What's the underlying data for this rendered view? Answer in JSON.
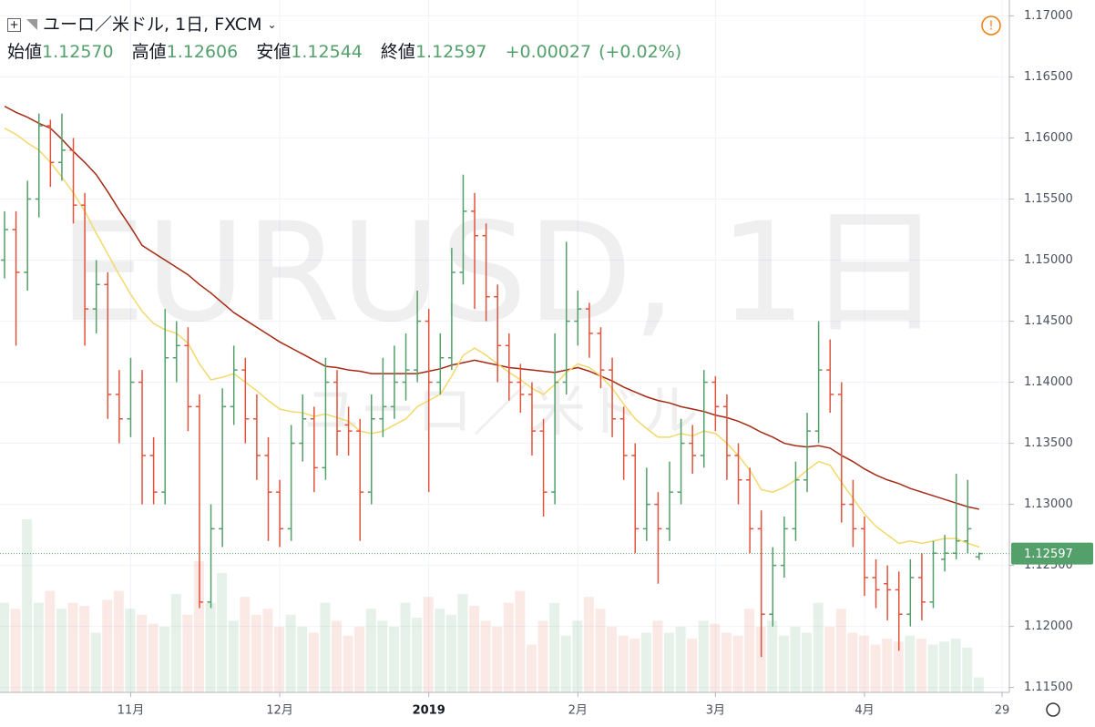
{
  "header": {
    "symbol": "ユーロ／米ドル, 1日, FXCM",
    "open_label": "始値",
    "open": "1.12570",
    "high_label": "高値",
    "high": "1.12606",
    "low_label": "安値",
    "low": "1.12544",
    "close_label": "終値",
    "close": "1.12597",
    "change": "+0.00027",
    "change_pct": "(+0.02%)"
  },
  "chart_data": {
    "type": "ohlc",
    "watermark": "EURUSD, 1日",
    "watermark_sub": "ユーロ／米ドル",
    "up_color": "#53a06b",
    "down_color": "#e0533d",
    "grid": true,
    "categories": [
      null,
      null,
      null,
      null,
      null,
      null,
      null,
      null,
      null,
      null,
      null,
      "11月",
      null,
      null,
      null,
      null,
      null,
      null,
      null,
      null,
      null,
      null,
      null,
      null,
      "12月",
      null,
      null,
      null,
      null,
      null,
      null,
      null,
      null,
      null,
      null,
      null,
      null,
      "2019",
      null,
      null,
      null,
      null,
      null,
      null,
      null,
      null,
      null,
      null,
      null,
      null,
      "2月",
      null,
      null,
      null,
      null,
      null,
      null,
      null,
      null,
      null,
      null,
      null,
      "3月",
      null,
      null,
      null,
      null,
      null,
      null,
      null,
      null,
      null,
      null,
      null,
      null,
      "4月",
      null,
      null,
      null,
      null,
      null,
      null,
      null,
      null,
      null,
      null,
      null,
      "29"
    ],
    "open": [
      1.15,
      1.1525,
      1.149,
      1.155,
      1.161,
      1.158,
      1.159,
      1.1545,
      1.146,
      1.148,
      1.139,
      1.137,
      1.14,
      1.134,
      1.131,
      1.142,
      1.143,
      1.138,
      1.122,
      1.128,
      1.138,
      1.141,
      1.137,
      1.134,
      1.131,
      1.128,
      1.135,
      1.137,
      1.133,
      1.14,
      1.1365,
      1.136,
      1.131,
      1.137,
      1.138,
      1.14,
      1.141,
      1.145,
      1.14,
      1.142,
      1.149,
      1.154,
      1.152,
      1.147,
      1.143,
      1.14,
      1.139,
      1.136,
      1.131,
      1.14,
      1.145,
      1.146,
      1.144,
      1.141,
      1.137,
      1.134,
      1.128,
      1.13,
      1.128,
      1.131,
      1.135,
      1.134,
      1.14,
      1.138,
      1.134,
      1.132,
      1.128,
      1.121,
      1.125,
      1.128,
      1.132,
      1.136,
      1.141,
      1.139,
      1.13,
      1.128,
      1.124,
      1.1235,
      1.123,
      1.121,
      1.124,
      1.122,
      1.1255,
      1.126,
      1.127,
      1.1257,
      null,
      null
    ],
    "high": [
      1.154,
      1.154,
      1.1565,
      1.162,
      1.1615,
      1.162,
      1.16,
      1.1555,
      1.15,
      1.149,
      1.141,
      1.142,
      1.141,
      1.1355,
      1.146,
      1.145,
      1.1445,
      1.139,
      1.13,
      1.1395,
      1.143,
      1.142,
      1.139,
      1.1355,
      1.132,
      1.1365,
      1.139,
      1.138,
      1.142,
      1.141,
      1.138,
      1.137,
      1.139,
      1.142,
      1.143,
      1.144,
      1.1475,
      1.146,
      1.144,
      1.151,
      1.157,
      1.1555,
      1.153,
      1.148,
      1.144,
      1.1415,
      1.14,
      1.137,
      1.144,
      1.1515,
      1.1475,
      1.1465,
      1.1445,
      1.142,
      1.138,
      1.135,
      1.133,
      1.131,
      1.1335,
      1.137,
      1.1365,
      1.141,
      1.1405,
      1.139,
      1.135,
      1.133,
      1.1295,
      1.1265,
      1.129,
      1.1335,
      1.1375,
      1.145,
      1.1435,
      1.14,
      1.132,
      1.129,
      1.1255,
      1.125,
      1.1245,
      1.1255,
      1.126,
      1.127,
      1.1275,
      1.1325,
      1.132,
      1.12606,
      null,
      null
    ],
    "low": [
      1.1485,
      1.143,
      1.1475,
      1.1535,
      1.156,
      1.1565,
      1.153,
      1.143,
      1.144,
      1.137,
      1.135,
      1.1355,
      1.13,
      1.13,
      1.13,
      1.14,
      1.136,
      1.1215,
      1.1215,
      1.1265,
      1.1365,
      1.135,
      1.132,
      1.127,
      1.1265,
      1.127,
      1.1335,
      1.131,
      1.132,
      1.134,
      1.134,
      1.127,
      1.13,
      1.1355,
      1.137,
      1.1385,
      1.14,
      1.131,
      1.139,
      1.141,
      1.148,
      1.146,
      1.145,
      1.14,
      1.1385,
      1.1375,
      1.134,
      1.129,
      1.13,
      1.139,
      1.143,
      1.142,
      1.1395,
      1.1355,
      1.132,
      1.126,
      1.127,
      1.1235,
      1.127,
      1.13,
      1.1325,
      1.133,
      1.136,
      1.132,
      1.13,
      1.126,
      1.1175,
      1.12,
      1.124,
      1.127,
      1.131,
      1.135,
      1.1375,
      1.1285,
      1.1265,
      1.1225,
      1.1215,
      1.1205,
      1.118,
      1.12,
      1.1205,
      1.1215,
      1.1245,
      1.1255,
      1.126,
      1.12544,
      null,
      null
    ],
    "close": [
      1.1525,
      1.149,
      1.155,
      1.161,
      1.158,
      1.159,
      1.1545,
      1.146,
      1.148,
      1.139,
      1.137,
      1.14,
      1.134,
      1.131,
      1.142,
      1.143,
      1.138,
      1.122,
      1.128,
      1.138,
      1.141,
      1.137,
      1.134,
      1.131,
      1.128,
      1.135,
      1.137,
      1.133,
      1.14,
      1.136,
      1.136,
      1.131,
      1.137,
      1.138,
      1.14,
      1.141,
      1.145,
      1.14,
      1.142,
      1.149,
      1.154,
      1.152,
      1.147,
      1.143,
      1.14,
      1.139,
      1.136,
      1.131,
      1.14,
      1.145,
      1.146,
      1.144,
      1.141,
      1.137,
      1.134,
      1.128,
      1.13,
      1.128,
      1.131,
      1.135,
      1.134,
      1.14,
      1.138,
      1.134,
      1.132,
      1.128,
      1.121,
      1.125,
      1.128,
      1.132,
      1.136,
      1.141,
      1.139,
      1.13,
      1.128,
      1.124,
      1.123,
      1.123,
      1.121,
      1.124,
      1.122,
      1.126,
      1.126,
      1.127,
      1.128,
      1.12597,
      null,
      null
    ],
    "volume": [
      150,
      140,
      290,
      150,
      170,
      140,
      150,
      145,
      100,
      155,
      170,
      140,
      130,
      115,
      110,
      165,
      130,
      220,
      150,
      200,
      120,
      160,
      130,
      140,
      110,
      130,
      110,
      100,
      150,
      120,
      95,
      110,
      140,
      120,
      110,
      150,
      125,
      160,
      140,
      130,
      165,
      145,
      120,
      110,
      150,
      170,
      80,
      120,
      150,
      95,
      120,
      160,
      140,
      110,
      95,
      90,
      100,
      120,
      100,
      110,
      90,
      120,
      115,
      100,
      95,
      140,
      110,
      120,
      95,
      110,
      100,
      150,
      110,
      140,
      100,
      95,
      80,
      90,
      85,
      95,
      90,
      80,
      85,
      90,
      75,
      25,
      null,
      null
    ],
    "ribbon": [
      {
        "color": "#a52a14",
        "values": [
          1.1626,
          1.1621,
          1.1617,
          1.1612,
          1.1608,
          1.1599,
          1.1589,
          1.158,
          1.157,
          1.1556,
          1.1541,
          1.1527,
          1.1512,
          1.1506,
          1.15,
          1.1494,
          1.1488,
          1.148,
          1.1473,
          1.1465,
          1.1457,
          1.1451,
          1.1445,
          1.1439,
          1.1433,
          1.1428,
          1.1423,
          1.1418,
          1.1413,
          1.1412,
          1.141,
          1.1409,
          1.1407,
          1.1407,
          1.1407,
          1.1407,
          1.1407,
          1.1409,
          1.1411,
          1.1414,
          1.1416,
          1.1418,
          1.1416,
          1.1414,
          1.1412,
          1.1411,
          1.141,
          1.1409,
          1.1408,
          1.141,
          1.1412,
          1.1409,
          1.1405,
          1.1401,
          1.1396,
          1.1392,
          1.1388,
          1.1385,
          1.1383,
          1.138,
          1.1378,
          1.1376,
          1.1373,
          1.1371,
          1.1368,
          1.1364,
          1.1359,
          1.1355,
          1.135,
          1.1348,
          1.1347,
          1.1348,
          1.1346,
          1.134,
          1.1335,
          1.1329,
          1.1324,
          1.132,
          1.1317,
          1.1313,
          1.131,
          1.1307,
          1.1304,
          1.1301,
          1.1298,
          1.1296,
          null,
          null
        ]
      },
      {
        "color": "#f2d96a",
        "values": [
          1.1608,
          1.1603,
          1.1596,
          1.159,
          1.158,
          1.1568,
          1.1555,
          1.154,
          1.1522,
          1.1505,
          1.1488,
          1.1472,
          1.1458,
          1.1448,
          1.1443,
          1.144,
          1.1432,
          1.1415,
          1.1402,
          1.1404,
          1.1407,
          1.14,
          1.1393,
          1.1385,
          1.1378,
          1.1376,
          1.1375,
          1.1372,
          1.1374,
          1.1371,
          1.1368,
          1.136,
          1.1358,
          1.136,
          1.1365,
          1.137,
          1.138,
          1.1385,
          1.139,
          1.1405,
          1.1422,
          1.1428,
          1.1422,
          1.1415,
          1.1408,
          1.1402,
          1.1395,
          1.139,
          1.1398,
          1.1408,
          1.1415,
          1.1412,
          1.1405,
          1.1395,
          1.1382,
          1.137,
          1.1362,
          1.1355,
          1.1355,
          1.1358,
          1.1356,
          1.136,
          1.1358,
          1.135,
          1.134,
          1.1328,
          1.1312,
          1.131,
          1.1314,
          1.132,
          1.1328,
          1.1335,
          1.1332,
          1.1318,
          1.1305,
          1.1292,
          1.1282,
          1.1275,
          1.1268,
          1.127,
          1.1268,
          1.127,
          1.1272,
          1.1272,
          1.1268,
          1.1265,
          null,
          null
        ]
      }
    ],
    "ylim": [
      1.1146,
      1.1713
    ],
    "yticks": [
      {
        "value": 1.115,
        "label": "1.11500"
      },
      {
        "value": 1.12,
        "label": "1.12000"
      },
      {
        "value": 1.125,
        "label": "1.12500"
      },
      {
        "value": 1.13,
        "label": "1.13000"
      },
      {
        "value": 1.135,
        "label": "1.13500"
      },
      {
        "value": 1.14,
        "label": "1.14000"
      },
      {
        "value": 1.145,
        "label": "1.14500"
      },
      {
        "value": 1.15,
        "label": "1.15000"
      },
      {
        "value": 1.155,
        "label": "1.15500"
      },
      {
        "value": 1.16,
        "label": "1.16000"
      },
      {
        "value": 1.165,
        "label": "1.16500"
      },
      {
        "value": 1.17,
        "label": "1.17000"
      }
    ]
  }
}
